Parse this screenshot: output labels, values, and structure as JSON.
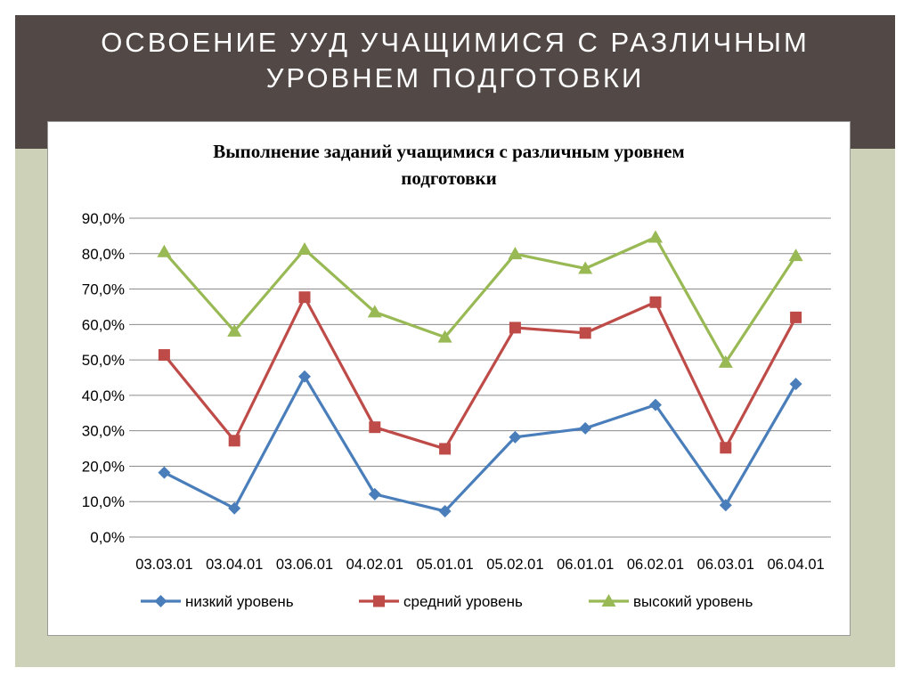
{
  "slide": {
    "title_line1": "Освоение УУД учащимися с различным",
    "title_line2": "уровнем подготовки",
    "colors": {
      "title_bar": "#524845",
      "frame": "#cdd1b8"
    }
  },
  "chart_data": {
    "type": "line",
    "title_line1": "Выполнение заданий учащимися с различным уровнем",
    "title_line2": "подготовки",
    "categories": [
      "03.03.01",
      "03.04.01",
      "03.06.01",
      "04.02.01",
      "05.01.01",
      "05.02.01",
      "06.01.01",
      "06.02.01",
      "06.03.01",
      "06.04.01"
    ],
    "series": [
      {
        "name": "низкий уровень",
        "color": "#4a7ebb",
        "marker": "diamond",
        "values": [
          18.2,
          8.1,
          45.3,
          12.1,
          7.3,
          28.2,
          30.7,
          37.3,
          9.0,
          43.2
        ]
      },
      {
        "name": "средний уровень",
        "color": "#be4b48",
        "marker": "square",
        "values": [
          51.4,
          27.2,
          67.7,
          31.0,
          24.9,
          59.1,
          57.6,
          66.3,
          25.2,
          62.0
        ]
      },
      {
        "name": "высокий уровень",
        "color": "#98b954",
        "marker": "triangle",
        "values": [
          80.5,
          58.1,
          81.2,
          63.5,
          56.4,
          79.9,
          75.8,
          84.6,
          49.3,
          79.4
        ]
      }
    ],
    "y_ticks": [
      "0,0%",
      "10,0%",
      "20,0%",
      "30,0%",
      "40,0%",
      "50,0%",
      "60,0%",
      "70,0%",
      "80,0%",
      "90,0%"
    ],
    "ylim": [
      0,
      90
    ],
    "y_step": 10,
    "grid": true,
    "legend_position": "bottom"
  }
}
